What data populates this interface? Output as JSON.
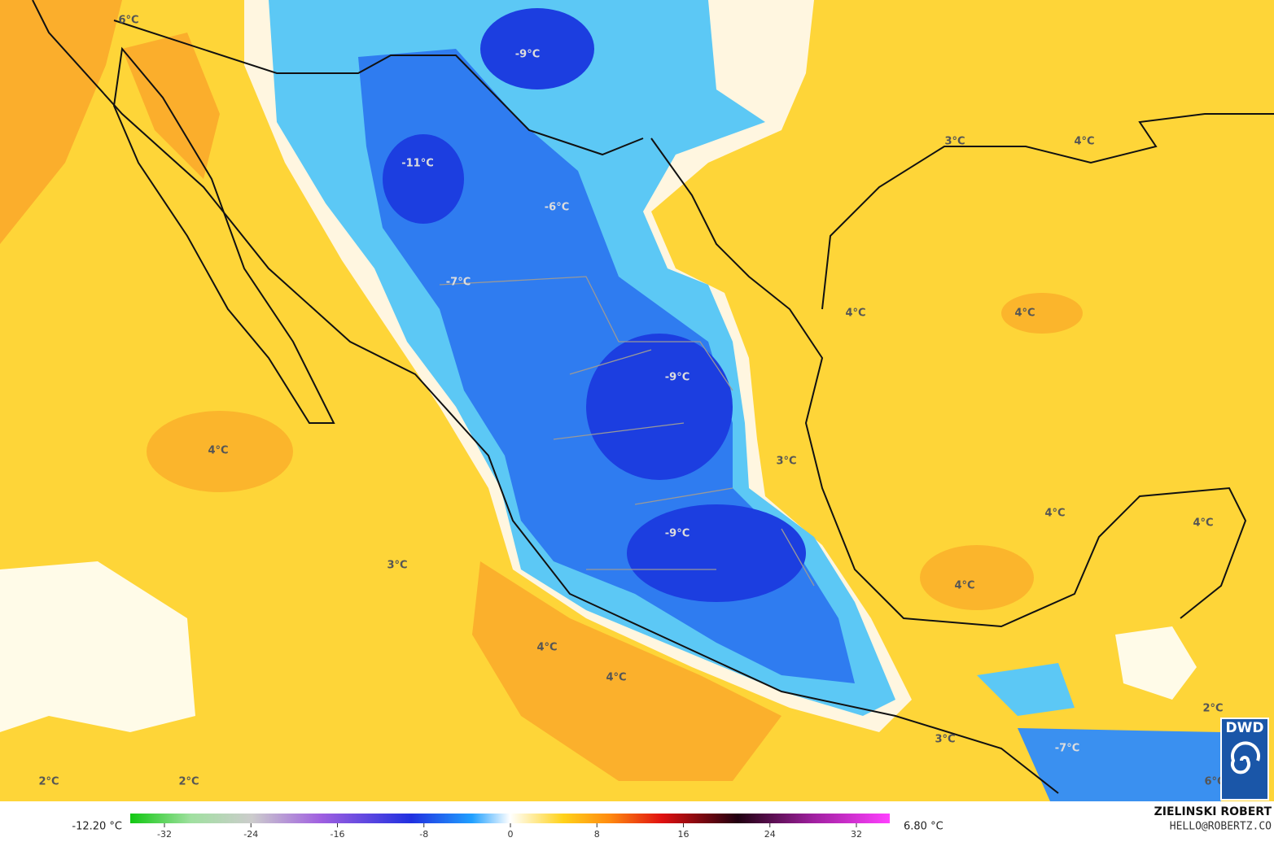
{
  "map": {
    "labels": [
      "6°C",
      "-9°C",
      "-11°C",
      "-6°C",
      "-7°C",
      "3°C",
      "4°C",
      "4°C",
      "4°C",
      "-9°C",
      "4°C",
      "3°C",
      "4°C",
      "4°C",
      "-9°C",
      "3°C",
      "4°C",
      "4°C",
      "4°C",
      "2°C",
      "3°C",
      "-7°C",
      "2°C",
      "2°C",
      "6°C"
    ]
  },
  "colorbar": {
    "min_label": "-12.20 °C",
    "max_label": "6.80 °C",
    "ticks": [
      -32,
      -24,
      -16,
      -8,
      0,
      8,
      16,
      24,
      32
    ]
  },
  "credits": {
    "author": "ZIELINSKI ROBERT",
    "contact": "HELLO@ROBERTZ.CO",
    "logo": "DWD"
  }
}
